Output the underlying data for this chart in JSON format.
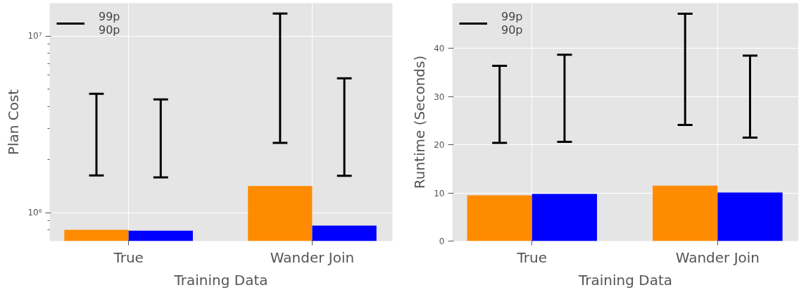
{
  "chart_data": [
    {
      "type": "bar",
      "xlabel": "Training Data",
      "ylabel": "Plan Cost",
      "categories": [
        "True",
        "Wander Join"
      ],
      "log": true,
      "grid": true,
      "legend_title": "99p\n90p",
      "ylim": [
        693000,
        15350000
      ],
      "yticks": [
        {
          "value": 800000,
          "label": null
        },
        {
          "value": 900000,
          "label": null
        },
        {
          "value": 1000000,
          "label": "10⁶"
        },
        {
          "value": 2000000,
          "label": null
        },
        {
          "value": 3000000,
          "label": null
        },
        {
          "value": 4000000,
          "label": null
        },
        {
          "value": 5000000,
          "label": null
        },
        {
          "value": 6000000,
          "label": null
        },
        {
          "value": 7000000,
          "label": null
        },
        {
          "value": 8000000,
          "label": null
        },
        {
          "value": 9000000,
          "label": null
        },
        {
          "value": 10000000,
          "label": "10⁷"
        }
      ],
      "series": [
        {
          "color": "#ff8c00",
          "values": [
            803000,
            1420000
          ],
          "errors": [
            [
              1630000,
              4720000
            ],
            [
              2490000,
              13400000
            ]
          ]
        },
        {
          "color": "#0000ff",
          "values": [
            794000,
            847000
          ],
          "errors": [
            [
              1590000,
              4380000
            ],
            [
              1620000,
              5770000
            ]
          ]
        }
      ]
    },
    {
      "type": "bar",
      "xlabel": "Training Data",
      "ylabel": "Runtime (Seconds)",
      "categories": [
        "True",
        "Wander Join"
      ],
      "grid": true,
      "legend_title": "99p\n90p",
      "ylim": [
        0,
        49.4
      ],
      "yticks": [
        0,
        10,
        20,
        30,
        40
      ],
      "series": [
        {
          "color": "#ff8c00",
          "values": [
            9.5,
            11.5
          ],
          "errors": [
            [
              20.4,
              36.4
            ],
            [
              24.1,
              47.2
            ]
          ]
        },
        {
          "color": "#0000ff",
          "values": [
            9.8,
            10.1
          ],
          "errors": [
            [
              20.6,
              38.7
            ],
            [
              21.5,
              38.5
            ]
          ]
        }
      ]
    }
  ]
}
